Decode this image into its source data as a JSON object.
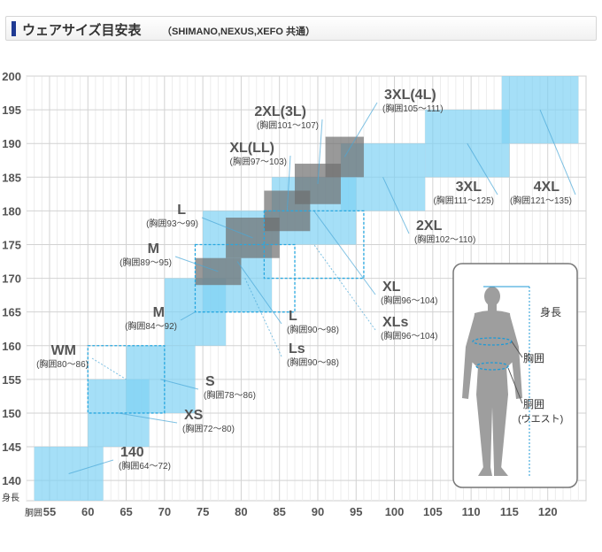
{
  "header": {
    "title": "ウェアサイズ目安表",
    "subtitle": "（SHIMANO,NEXUS,XEFO 共通）"
  },
  "chart_data": {
    "type": "box",
    "xlabel": "胴囲",
    "ylabel": "身長",
    "xlim": [
      52,
      125
    ],
    "ylim": [
      137,
      200
    ],
    "x_ticks": [
      55,
      60,
      65,
      70,
      75,
      80,
      85,
      90,
      95,
      100,
      105,
      110,
      115,
      120
    ],
    "y_ticks": [
      140,
      145,
      150,
      155,
      160,
      165,
      170,
      175,
      180,
      185,
      190,
      195,
      200
    ],
    "grid": true,
    "colors": {
      "regular": "#7fd1f3",
      "long": "#6d6d6d",
      "slim": "#29a8e0",
      "label": "#555555",
      "sublabel": "#444444"
    },
    "sizes": [
      {
        "name": "140",
        "range": "(胸囲64〜72)",
        "kind": "regular",
        "x": [
          53,
          62
        ],
        "y": [
          137,
          145
        ]
      },
      {
        "name": "XS",
        "range": "(胸囲72〜80)",
        "kind": "regular",
        "x": [
          60,
          68
        ],
        "y": [
          145,
          155
        ]
      },
      {
        "name": "S",
        "range": "(胸囲78〜86)",
        "kind": "regular",
        "x": [
          65,
          74
        ],
        "y": [
          150,
          160
        ]
      },
      {
        "name": "M",
        "range": "(胸囲84〜92)",
        "kind": "regular",
        "x": [
          70,
          78
        ],
        "y": [
          160,
          170
        ]
      },
      {
        "name": "L",
        "range": "(胸囲90〜98)",
        "kind": "regular",
        "x": [
          75,
          84
        ],
        "y": [
          165,
          180
        ]
      },
      {
        "name": "XL",
        "range": "(胸囲96〜104)",
        "kind": "regular",
        "x": [
          84,
          95
        ],
        "y": [
          175,
          185
        ]
      },
      {
        "name": "2XL",
        "range": "(胸囲102〜110)",
        "kind": "regular",
        "x": [
          93,
          104
        ],
        "y": [
          180,
          190
        ]
      },
      {
        "name": "3XL",
        "range": "(胸囲111〜125)",
        "kind": "regular",
        "x": [
          104,
          115
        ],
        "y": [
          185,
          195
        ]
      },
      {
        "name": "4XL",
        "range": "(胸囲121〜135)",
        "kind": "regular",
        "x": [
          114,
          124
        ],
        "y": [
          190,
          200
        ]
      },
      {
        "name": "WM",
        "range": "(胸囲80〜86)",
        "kind": "slim",
        "x": [
          60,
          70
        ],
        "y": [
          150,
          160
        ]
      },
      {
        "name": "Ls",
        "range": "(胸囲90〜98)",
        "kind": "slim",
        "x": [
          74,
          87
        ],
        "y": [
          165,
          175
        ]
      },
      {
        "name": "XLs",
        "range": "(胸囲96〜104)",
        "kind": "slim",
        "x": [
          83,
          96
        ],
        "y": [
          170,
          180
        ]
      },
      {
        "name": "M",
        "range": "(胸囲89〜95)",
        "kind": "long",
        "x": [
          74,
          80
        ],
        "y": [
          169,
          173
        ]
      },
      {
        "name": "L",
        "range": "(胸囲93〜99)",
        "kind": "long",
        "x": [
          78,
          85
        ],
        "y": [
          173,
          179
        ]
      },
      {
        "name": "XL(LL)",
        "range": "(胸囲97〜103)",
        "kind": "long",
        "x": [
          83,
          89
        ],
        "y": [
          177,
          183
        ]
      },
      {
        "name": "2XL(3L)",
        "range": "(胸囲101〜107)",
        "kind": "long",
        "x": [
          87,
          93
        ],
        "y": [
          181,
          187
        ]
      },
      {
        "name": "3XL(4L)",
        "range": "(胸囲105〜111)",
        "kind": "long",
        "x": [
          91,
          96
        ],
        "y": [
          185,
          191
        ]
      }
    ],
    "body_guide": {
      "height_label": "身長",
      "chest_label": "胸囲",
      "waist_label": "胴囲",
      "waist_note": "(ウエスト)"
    }
  }
}
